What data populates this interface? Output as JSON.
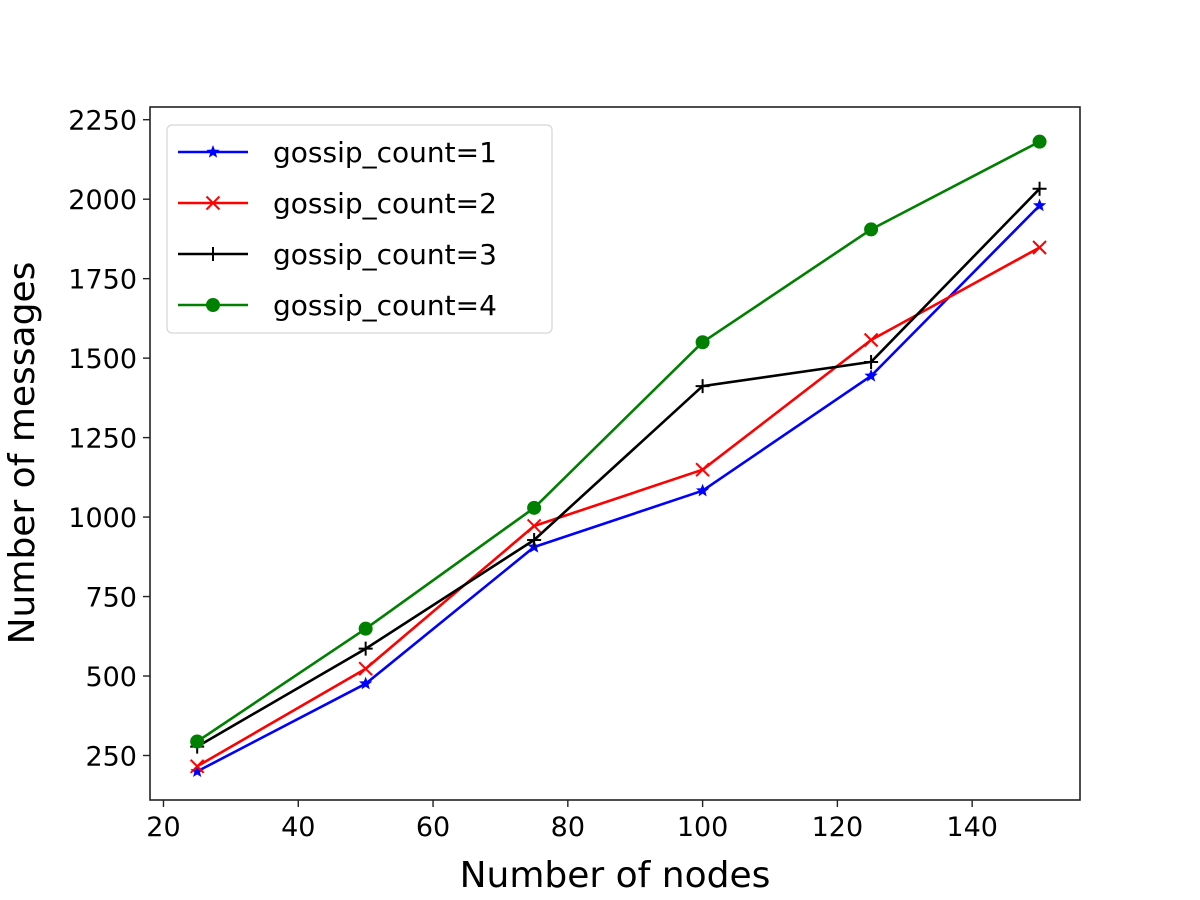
{
  "chart_data": {
    "type": "line",
    "title": "",
    "xlabel": "Number of nodes",
    "ylabel": "Number of messages",
    "x": [
      25,
      50,
      75,
      100,
      125,
      150
    ],
    "xlim": [
      18,
      156
    ],
    "ylim": [
      110,
      2290
    ],
    "xticks": [
      20,
      40,
      60,
      80,
      100,
      120,
      140
    ],
    "yticks": [
      250,
      500,
      750,
      1000,
      1250,
      1500,
      1750,
      2000,
      2250
    ],
    "grid": false,
    "legend_position": "upper left",
    "series": [
      {
        "name": "gossip_count=1",
        "color": "#0000ff",
        "marker": "star",
        "values": [
          200,
          476,
          906,
          1083,
          1444,
          1980
        ]
      },
      {
        "name": "gossip_count=2",
        "color": "#ff0000",
        "marker": "x",
        "values": [
          216,
          523,
          972,
          1149,
          1557,
          1848
        ]
      },
      {
        "name": "gossip_count=3",
        "color": "#000000",
        "marker": "plus",
        "values": [
          278,
          586,
          928,
          1412,
          1488,
          2033
        ]
      },
      {
        "name": "gossip_count=4",
        "color": "#008000",
        "marker": "circle",
        "values": [
          294,
          649,
          1029,
          1550,
          1905,
          2181
        ]
      }
    ]
  }
}
